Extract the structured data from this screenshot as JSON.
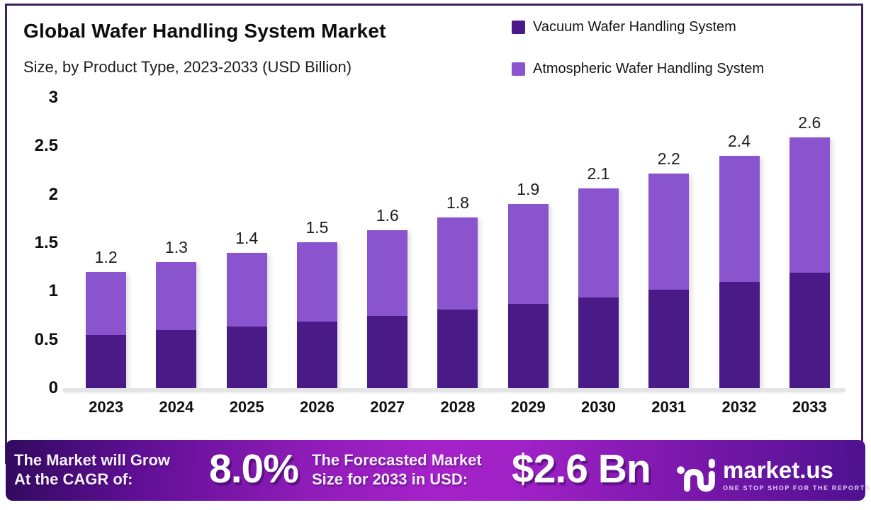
{
  "header": {
    "title": "Global Wafer Handling System Market",
    "subtitle": "Size, by Product Type, 2023-2033 (USD Billion)"
  },
  "legend": {
    "items": [
      {
        "label": "Vacuum Wafer Handling System",
        "color": "#4a1b87"
      },
      {
        "label": "Atmospheric Wafer Handling System",
        "color": "#8a54ce"
      }
    ]
  },
  "chart_data": {
    "type": "bar",
    "stacked": true,
    "title": "Global Wafer Handling System Market Size, by Product Type, 2023-2033 (USD Billion)",
    "unit": "USD Billion",
    "categories": [
      "2023",
      "2024",
      "2025",
      "2026",
      "2027",
      "2028",
      "2029",
      "2030",
      "2031",
      "2032",
      "2033"
    ],
    "series": [
      {
        "name": "Vacuum Wafer Handling System",
        "color": "#4a1b87",
        "values": [
          0.55,
          0.6,
          0.64,
          0.69,
          0.75,
          0.81,
          0.87,
          0.94,
          1.02,
          1.1,
          1.19
        ]
      },
      {
        "name": "Atmospheric Wafer Handling System",
        "color": "#8a54ce",
        "values": [
          0.65,
          0.7,
          0.76,
          0.82,
          0.88,
          0.95,
          1.03,
          1.12,
          1.2,
          1.3,
          1.4
        ]
      }
    ],
    "total_labels": [
      "1.2",
      "1.3",
      "1.4",
      "1.5",
      "1.6",
      "1.8",
      "1.9",
      "2.1",
      "2.2",
      "2.4",
      "2.6"
    ],
    "y_ticks": [
      0,
      0.5,
      1,
      1.5,
      2,
      2.5,
      3
    ],
    "y_tick_labels": [
      "0",
      "0.5",
      "1",
      "1.5",
      "2",
      "2.5",
      "3"
    ],
    "ylim": [
      0,
      3
    ],
    "grid": false,
    "legend_position": "top-right"
  },
  "footer": {
    "cagr": {
      "line1": "The Market will Grow",
      "line2": "At the CAGR of:",
      "value": "8.0%"
    },
    "forecast": {
      "line1": "The Forecasted Market",
      "line2": "Size for 2033 in USD:",
      "value": "$2.6 Bn"
    },
    "brand": {
      "name": "market.us",
      "tagline": "ONE STOP SHOP FOR THE REPORTS"
    }
  },
  "colors": {
    "vacuum": "#4a1b87",
    "atmospheric": "#8a54ce",
    "frame_border": "#3c2458",
    "baseline": "#e4e4e6",
    "banner_left": "#310a5e",
    "banner_mid": "#a522c9",
    "banner_right": "#4e1190",
    "text_dark": "#141414",
    "text_white": "#ffffff"
  }
}
